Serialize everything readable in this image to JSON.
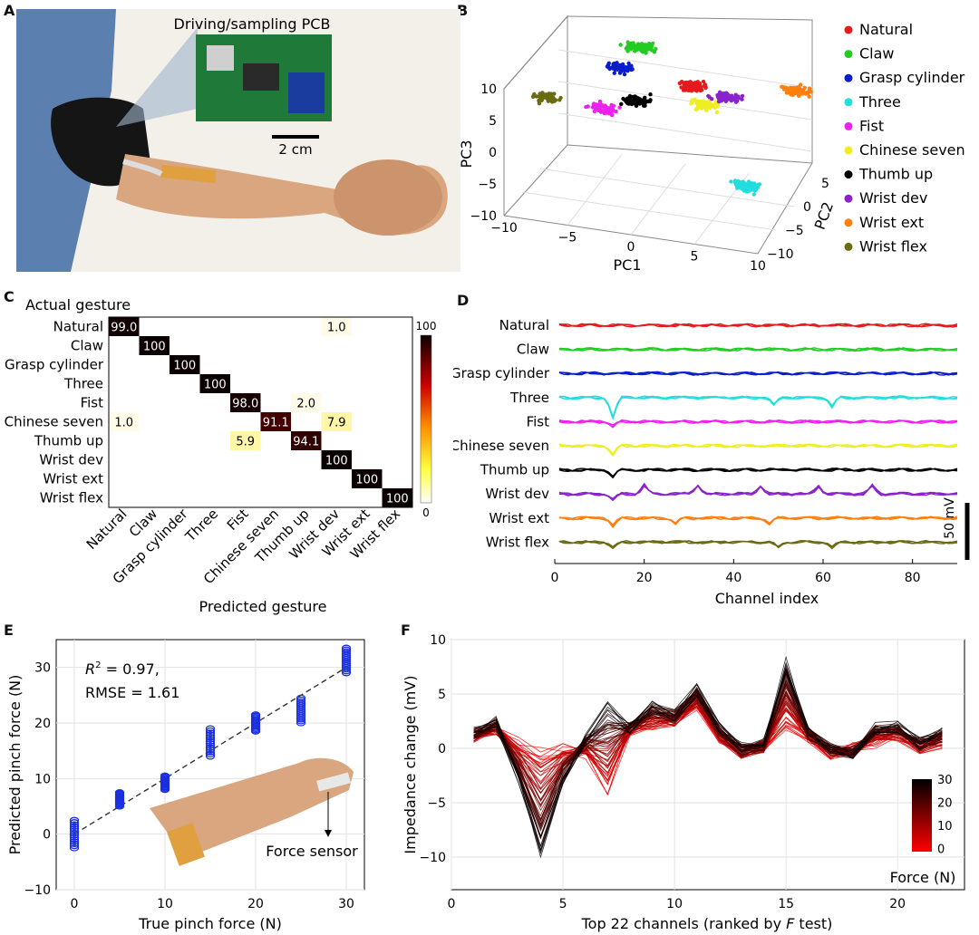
{
  "panels": {
    "A": "A",
    "B": "B",
    "C": "C",
    "D": "D",
    "E": "E",
    "F": "F"
  },
  "photo_a": {
    "pcb_label": "Driving/sampling PCB",
    "scale_bar": "2 cm",
    "colors": {
      "sleeve": "#5b7fae",
      "armband": "#151515",
      "skin": "#d9a67f",
      "pcb": "#1f7a3a"
    }
  },
  "chart_data": [
    {
      "panel": "B",
      "type": "scatter",
      "x_label": "PC1",
      "y_label": "PC2",
      "z_label": "PC3",
      "x_ticks": [
        "−10",
        "−5",
        "0",
        "5",
        "10"
      ],
      "y_ticks": [
        "−10",
        "−5",
        "0",
        "5"
      ],
      "z_ticks": [
        "−10",
        "−5",
        "0",
        "5",
        "10"
      ],
      "xlim": [
        -10,
        10
      ],
      "ylim": [
        -10,
        5
      ],
      "zlim": [
        -10,
        10
      ],
      "grid": true,
      "legend_position": "right",
      "series": [
        {
          "name": "Natural",
          "color": "#e41a1c",
          "centroid": [
            1.5,
            2,
            5
          ]
        },
        {
          "name": "Claw",
          "color": "#22cc22",
          "centroid": [
            -3,
            3,
            9
          ]
        },
        {
          "name": "Grasp cylinder",
          "color": "#0a1ccc",
          "centroid": [
            -4,
            1,
            7
          ]
        },
        {
          "name": "Three",
          "color": "#22dddd",
          "centroid": [
            8,
            -6,
            -3
          ]
        },
        {
          "name": "Fist",
          "color": "#ee22ee",
          "centroid": [
            -5,
            0,
            1
          ]
        },
        {
          "name": "Chinese seven",
          "color": "#eeee22",
          "centroid": [
            3,
            0,
            4
          ]
        },
        {
          "name": "Thumb up",
          "color": "#000000",
          "centroid": [
            -2.5,
            0,
            3
          ]
        },
        {
          "name": "Wrist dev",
          "color": "#8a22cc",
          "centroid": [
            4,
            2,
            4
          ]
        },
        {
          "name": "Wrist ext",
          "color": "#ff7f0e",
          "centroid": [
            9,
            4,
            5
          ]
        },
        {
          "name": "Wrist flex",
          "color": "#6b6b10",
          "centroid": [
            -9,
            -2,
            3
          ]
        }
      ]
    },
    {
      "panel": "C",
      "type": "heatmap",
      "title": "Actual gesture",
      "xlabel": "Predicted gesture",
      "rows": [
        "Natural",
        "Claw",
        "Grasp cylinder",
        "Three",
        "Fist",
        "Chinese seven",
        "Thumb up",
        "Wrist dev",
        "Wrist ext",
        "Wrist flex"
      ],
      "cols": [
        "Natural",
        "Claw",
        "Grasp cylinder",
        "Three",
        "Fist",
        "Chinese seven",
        "Thumb up",
        "Wrist dev",
        "Wrist ext",
        "Wrist flex"
      ],
      "cells": [
        {
          "r": 0,
          "c": 0,
          "v": 99.0,
          "label": "99.0"
        },
        {
          "r": 0,
          "c": 7,
          "v": 1.0,
          "label": "1.0"
        },
        {
          "r": 1,
          "c": 1,
          "v": 100,
          "label": "100"
        },
        {
          "r": 2,
          "c": 2,
          "v": 100,
          "label": "100"
        },
        {
          "r": 3,
          "c": 3,
          "v": 100,
          "label": "100"
        },
        {
          "r": 4,
          "c": 4,
          "v": 98.0,
          "label": "98.0"
        },
        {
          "r": 4,
          "c": 6,
          "v": 2.0,
          "label": "2.0"
        },
        {
          "r": 5,
          "c": 0,
          "v": 1.0,
          "label": "1.0"
        },
        {
          "r": 5,
          "c": 5,
          "v": 91.1,
          "label": "91.1"
        },
        {
          "r": 5,
          "c": 7,
          "v": 7.9,
          "label": "7.9"
        },
        {
          "r": 6,
          "c": 4,
          "v": 5.9,
          "label": "5.9"
        },
        {
          "r": 6,
          "c": 6,
          "v": 94.1,
          "label": "94.1"
        },
        {
          "r": 7,
          "c": 7,
          "v": 100,
          "label": "100"
        },
        {
          "r": 8,
          "c": 8,
          "v": 100,
          "label": "100"
        },
        {
          "r": 9,
          "c": 9,
          "v": 100,
          "label": "100"
        }
      ],
      "colorbar_ticks": [
        "100",
        "0"
      ]
    },
    {
      "panel": "D",
      "type": "line",
      "xlabel": "Channel index",
      "x_ticks": [
        "0",
        "20",
        "40",
        "60",
        "80"
      ],
      "xlim": [
        0,
        90
      ],
      "scale_bar": "50 mV",
      "series": [
        {
          "name": "Natural",
          "color": "#e41a1c"
        },
        {
          "name": "Claw",
          "color": "#22cc22"
        },
        {
          "name": "Grasp cylinder",
          "color": "#0a1ccc"
        },
        {
          "name": "Three",
          "color": "#22dddd"
        },
        {
          "name": "Fist",
          "color": "#ee22ee"
        },
        {
          "name": "Chinese seven",
          "color": "#eeee22"
        },
        {
          "name": "Thumb up",
          "color": "#000000"
        },
        {
          "name": "Wrist dev",
          "color": "#8a22cc"
        },
        {
          "name": "Wrist ext",
          "color": "#ff7f0e"
        },
        {
          "name": "Wrist flex",
          "color": "#6b6b10"
        }
      ]
    },
    {
      "panel": "E",
      "type": "scatter",
      "xlabel": "True pinch force (N)",
      "ylabel": "Predicted pinch force (N)",
      "xlim": [
        -2,
        32
      ],
      "ylim": [
        -10,
        35
      ],
      "x_ticks": [
        "0",
        "10",
        "20",
        "30"
      ],
      "y_ticks": [
        "−10",
        "0",
        "10",
        "20",
        "30"
      ],
      "annotation_r2_prefix": "R",
      "annotation_r2_sup": "2",
      "annotation_r2_value": " = 0.97,",
      "annotation_rmse": "RMSE = 1.61",
      "inset_label": "Force sensor",
      "color": "#1a2fe0",
      "points": [
        {
          "x": 0,
          "y_min": -2.5,
          "y_max": 2.5
        },
        {
          "x": 5,
          "y_min": 5,
          "y_max": 7.5
        },
        {
          "x": 10,
          "y_min": 8,
          "y_max": 10.5
        },
        {
          "x": 15,
          "y_min": 14,
          "y_max": 19
        },
        {
          "x": 20,
          "y_min": 18.5,
          "y_max": 21.5
        },
        {
          "x": 25,
          "y_min": 20,
          "y_max": 24.5
        },
        {
          "x": 30,
          "y_min": 29,
          "y_max": 33.5
        }
      ],
      "fit_line": [
        [
          0,
          0
        ],
        [
          30,
          30
        ]
      ]
    },
    {
      "panel": "F",
      "type": "line",
      "xlabel_prefix": "Top 22 channels (ranked by ",
      "xlabel_italic": "F",
      "xlabel_suffix": " test)",
      "ylabel": "Impedance change (mV)",
      "xlim": [
        0,
        23
      ],
      "ylim": [
        -13,
        10
      ],
      "x_ticks": [
        "0",
        "5",
        "10",
        "15",
        "20"
      ],
      "y_ticks": [
        "−10",
        "−5",
        "0",
        "5",
        "10"
      ],
      "colorbar_label": "Force (N)",
      "colorbar_ticks": [
        "30",
        "20",
        "10",
        "0"
      ],
      "x": [
        1,
        2,
        3,
        4,
        5,
        6,
        7,
        8,
        9,
        10,
        11,
        12,
        13,
        14,
        15,
        16,
        17,
        18,
        19,
        20,
        21,
        22
      ],
      "series_high_force": [
        1.5,
        2.5,
        -3,
        -10,
        -3,
        1,
        4,
        2,
        4,
        3,
        5.5,
        2,
        0,
        0.5,
        8,
        1.5,
        0,
        -0.5,
        2,
        2,
        0.5,
        1.5
      ],
      "series_low_force": [
        1,
        1.5,
        0.5,
        0,
        0,
        -0.5,
        -4,
        1.5,
        2,
        2.5,
        4,
        1,
        -0.5,
        0,
        2,
        1,
        -0.5,
        0,
        0.5,
        1,
        0,
        0.5
      ]
    }
  ]
}
